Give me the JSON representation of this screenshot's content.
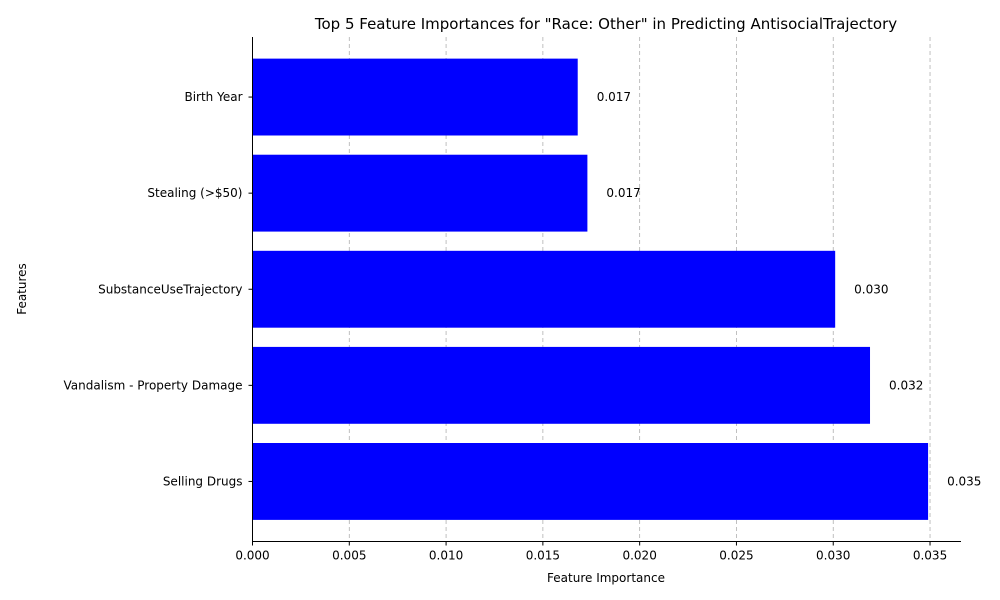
{
  "chart_data": {
    "type": "bar",
    "orientation": "horizontal",
    "title": "Top 5 Feature Importances for \"Race: Other\" in Predicting AntisocialTrajectory",
    "xlabel": "Feature Importance",
    "ylabel": "Features",
    "categories": [
      "Selling Drugs",
      "Vandalism - Property Damage",
      "SubstanceUseTrajectory",
      "Stealing (>$50)",
      "Birth Year"
    ],
    "values": [
      0.0349,
      0.0319,
      0.0301,
      0.0173,
      0.0168
    ],
    "value_labels": [
      "0.035",
      "0.032",
      "0.030",
      "0.017",
      "0.017"
    ],
    "xlim": [
      0,
      0.0366
    ],
    "xticks": [
      0,
      0.005,
      0.01,
      0.015,
      0.02,
      0.025,
      0.03,
      0.035
    ],
    "xtick_labels": [
      "0.000",
      "0.005",
      "0.010",
      "0.015",
      "0.020",
      "0.025",
      "0.030",
      "0.035"
    ],
    "grid": "x-dashed",
    "bar_color": "#0000ff"
  }
}
